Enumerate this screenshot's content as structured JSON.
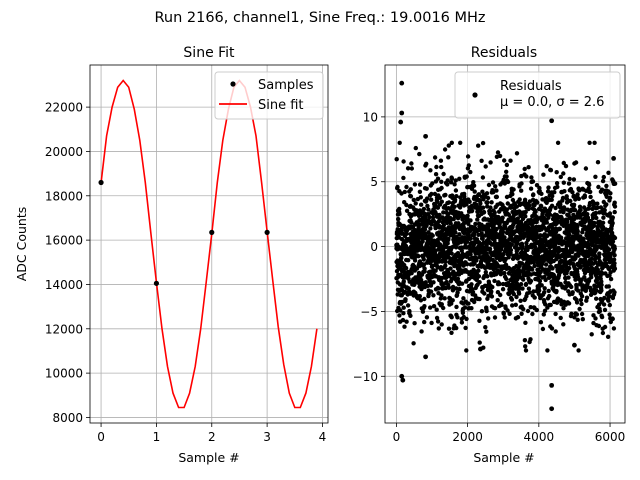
{
  "figure": {
    "suptitle": "Run 2166, channel1, Sine Freq.: 19.0016 MHz"
  },
  "chart_data": [
    {
      "type": "line",
      "title": "Sine Fit",
      "xlabel": "Sample #",
      "ylabel": "ADC Counts",
      "xlim": [
        -0.2,
        4.1
      ],
      "ylim": [
        7750,
        23900
      ],
      "grid": true,
      "legend_position": "top-right",
      "x_ticks": [
        0,
        1,
        2,
        3,
        4
      ],
      "y_ticks": [
        8000,
        10000,
        12000,
        14000,
        16000,
        18000,
        20000,
        22000
      ],
      "series": [
        {
          "name": "Samples",
          "kind": "scatter",
          "color": "#000000",
          "x": [
            0,
            1,
            2,
            3
          ],
          "y": [
            18600,
            14050,
            16350,
            16350
          ]
        },
        {
          "name": "Sine fit",
          "kind": "line",
          "color": "#ff0000",
          "x": [
            0,
            0.1,
            0.2,
            0.3,
            0.4,
            0.5,
            0.6,
            0.7,
            0.8,
            0.9,
            1.0,
            1.1,
            1.2,
            1.3,
            1.4,
            1.5,
            1.6,
            1.7,
            1.8,
            1.9,
            2.0,
            2.1,
            2.2,
            2.3,
            2.4,
            2.5,
            2.6,
            2.7,
            2.8,
            2.9,
            3.0,
            3.1,
            3.2,
            3.3,
            3.4,
            3.5,
            3.6,
            3.7,
            3.8,
            3.9
          ],
          "y": [
            18600,
            20700,
            22000,
            22900,
            23200,
            22900,
            21900,
            20500,
            18600,
            16300,
            14100,
            12000,
            10300,
            9100,
            8450,
            8450,
            9100,
            10300,
            12000,
            14100,
            16300,
            18600,
            20500,
            21900,
            22900,
            23200,
            22900,
            22000,
            20700,
            18600,
            16400,
            14200,
            12100,
            10400,
            9100,
            8450,
            8450,
            9100,
            10300,
            12000
          ]
        }
      ]
    },
    {
      "type": "scatter",
      "title": "Residuals",
      "xlabel": "Sample #",
      "ylabel": "",
      "xlim": [
        -320,
        6420
      ],
      "ylim": [
        -13.6,
        14.0
      ],
      "grid": true,
      "legend_position": "top-right",
      "x_ticks": [
        0,
        2000,
        4000,
        6000
      ],
      "y_ticks": [
        -10,
        -5,
        0,
        5,
        10
      ],
      "series": [
        {
          "name": "Residuals",
          "stats_label": "μ = 0.0, σ = 2.6",
          "color": "#000000",
          "n_points": 6144,
          "mean": 0.0,
          "std": 2.6,
          "x_range": [
            0,
            6143
          ],
          "extremes": [
            {
              "x": 150,
              "y": 12.6
            },
            {
              "x": 150,
              "y": 10.3
            },
            {
              "x": 120,
              "y": 9.6
            },
            {
              "x": 180,
              "y": -10.3
            },
            {
              "x": 150,
              "y": -10.0
            },
            {
              "x": 4360,
              "y": 9.7
            },
            {
              "x": 4360,
              "y": -10.7
            },
            {
              "x": 4360,
              "y": -12.5
            },
            {
              "x": 820,
              "y": 8.5
            },
            {
              "x": 820,
              "y": -8.5
            },
            {
              "x": 2360,
              "y": -7.9
            },
            {
              "x": 6100,
              "y": 6.8
            },
            {
              "x": 5000,
              "y": -7.6
            }
          ]
        }
      ]
    }
  ]
}
